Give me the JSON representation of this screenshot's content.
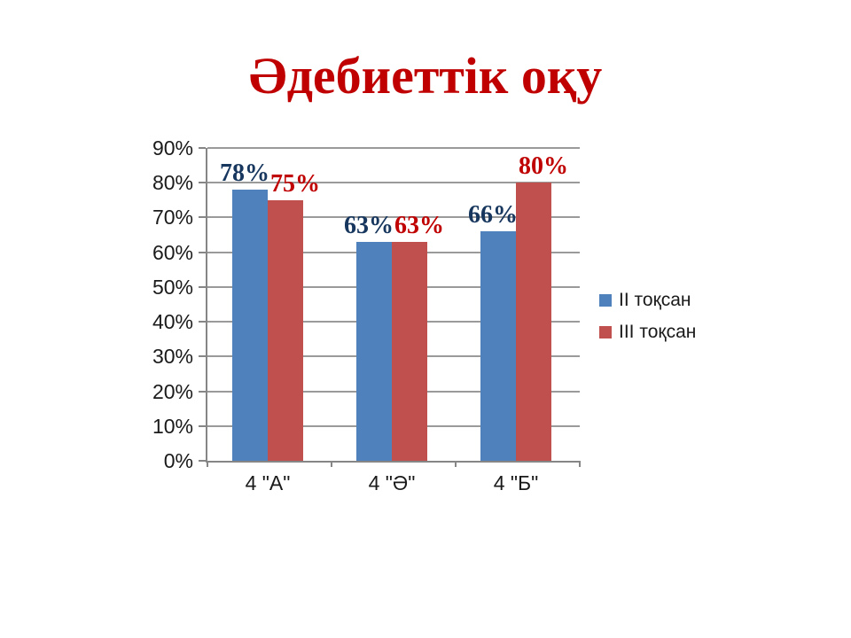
{
  "chart_data": {
    "type": "bar",
    "title": "Әдебиеттік оқу",
    "title_color": "#C00000",
    "categories": [
      "4 \"А\"",
      "4 \"Ә\"",
      "4 \"Б\""
    ],
    "series": [
      {
        "name": "ІІ тоқсан",
        "values": [
          78,
          63,
          66
        ],
        "data_labels": [
          "78%",
          "63%",
          "66%"
        ],
        "bar_color": "#4F81BD",
        "label_color": "#17375E"
      },
      {
        "name": "ІІІ тоқсан",
        "values": [
          75,
          63,
          80
        ],
        "data_labels": [
          "75%",
          "63%",
          "80%"
        ],
        "bar_color": "#C0504D",
        "label_color": "#C00000"
      }
    ],
    "xlabel": "",
    "ylabel": "",
    "ylim": [
      0,
      90
    ],
    "y_tick_step": 10,
    "y_tick_labels": [
      "0%",
      "10%",
      "20%",
      "30%",
      "40%",
      "50%",
      "60%",
      "70%",
      "80%",
      "90%"
    ],
    "grid": true,
    "legend_position": "right",
    "axis_color": "#868686",
    "gridline_color": "#9A9A9A",
    "axis_text_color": "#1A1A1A"
  }
}
